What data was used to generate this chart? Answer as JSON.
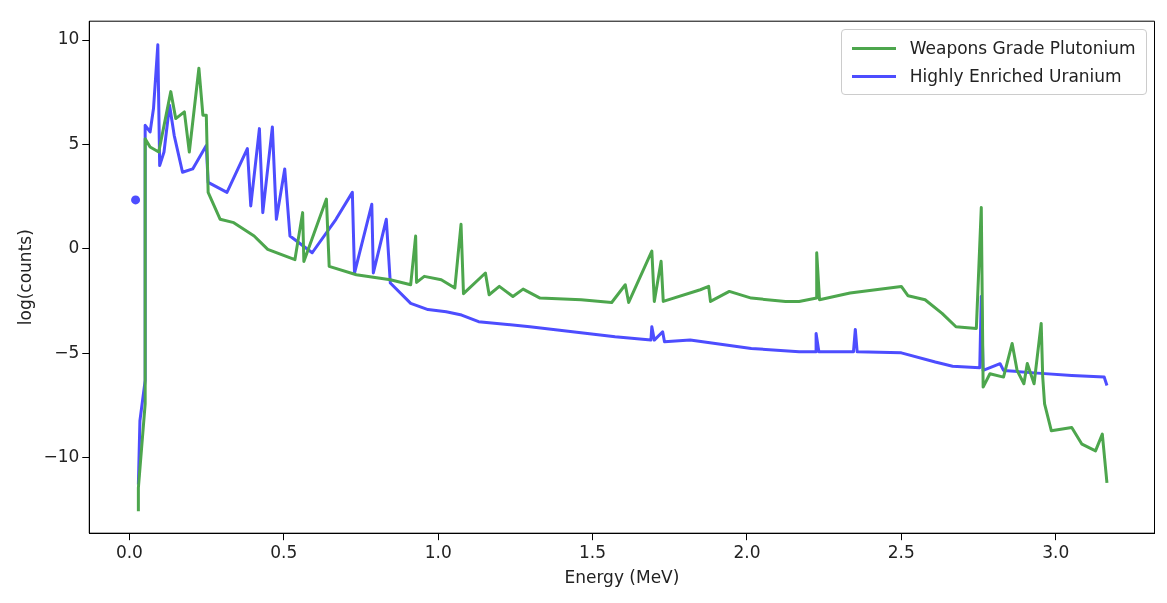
{
  "chart_data": {
    "type": "line",
    "xlabel": "Energy (MeV)",
    "ylabel": "log(counts)",
    "xlim": [
      -0.13,
      3.32
    ],
    "ylim": [
      -13.6,
      10.9
    ],
    "xticks": [
      {
        "value": 0,
        "label": "0.0"
      },
      {
        "value": 0.5,
        "label": "0.5"
      },
      {
        "value": 1,
        "label": "1.0"
      },
      {
        "value": 1.5,
        "label": "1.5"
      },
      {
        "value": 2,
        "label": "2.0"
      },
      {
        "value": 2.5,
        "label": "2.5"
      },
      {
        "value": 3,
        "label": "3.0"
      }
    ],
    "yticks": [
      {
        "value": -10,
        "label": "−10"
      },
      {
        "value": -5,
        "label": "−5"
      },
      {
        "value": 0,
        "label": "0"
      },
      {
        "value": 5,
        "label": "5"
      },
      {
        "value": 10,
        "label": "10"
      }
    ],
    "grid": false,
    "legend": "top right",
    "line_style": "solid",
    "marker": "none",
    "series": [
      {
        "name": "Weapons Grade Plutonium",
        "color": "#4da64d",
        "x": [
          0.029,
          0.029,
          0.051,
          0.051,
          0.067,
          0.095,
          0.134,
          0.15,
          0.178,
          0.194,
          0.225,
          0.238,
          0.249,
          0.255,
          0.294,
          0.338,
          0.404,
          0.448,
          0.536,
          0.561,
          0.565,
          0.638,
          0.647,
          0.735,
          0.845,
          0.911,
          0.927,
          0.93,
          0.955,
          1.01,
          1.054,
          1.074,
          1.082,
          1.153,
          1.165,
          1.198,
          1.242,
          1.275,
          1.33,
          1.463,
          1.562,
          1.606,
          1.617,
          1.692,
          1.7,
          1.722,
          1.729,
          1.849,
          1.876,
          1.882,
          1.943,
          2.014,
          2.125,
          2.169,
          2.226,
          2.226,
          2.235,
          2.334,
          2.5,
          2.522,
          2.577,
          2.632,
          2.677,
          2.743,
          2.759,
          2.765,
          2.787,
          2.831,
          2.859,
          2.875,
          2.897,
          2.908,
          2.93,
          2.953,
          2.958,
          2.964,
          2.986,
          3.052,
          3.085,
          3.129,
          3.151,
          3.166
        ],
        "values": [
          -12.55,
          -11.43,
          -7.41,
          5.28,
          4.88,
          4.64,
          7.53,
          6.24,
          6.56,
          4.64,
          8.65,
          6.4,
          6.4,
          2.71,
          1.42,
          1.26,
          0.62,
          -0.02,
          -0.51,
          1.74,
          -0.6,
          2.39,
          -0.83,
          -1.23,
          -1.47,
          -1.71,
          0.62,
          -1.6,
          -1.31,
          -1.47,
          -1.87,
          1.18,
          -2.14,
          -1.15,
          -2.19,
          -1.79,
          -2.27,
          -1.92,
          -2.35,
          -2.43,
          -2.56,
          -1.71,
          -2.56,
          -0.1,
          -2.51,
          -0.59,
          -2.51,
          -1.95,
          -1.79,
          -2.51,
          -2.03,
          -2.35,
          -2.51,
          -2.51,
          -2.35,
          -0.18,
          -2.43,
          -2.11,
          -1.79,
          -2.24,
          -2.43,
          -3.08,
          -3.72,
          -3.8,
          1.98,
          -6.61,
          -5.97,
          -6.13,
          -4.52,
          -5.81,
          -6.45,
          -5.48,
          -6.45,
          -3.56,
          -6.13,
          -7.41,
          -8.7,
          -8.54,
          -9.34,
          -9.66,
          -8.86,
          -11.19
        ]
      },
      {
        "name": "Highly Enriched Uranium",
        "color": "#4d4dff",
        "x": [
          0.02,
          0.025,
          0.029,
          0.034,
          0.051,
          0.051,
          0.067,
          0.078,
          0.092,
          0.098,
          0.112,
          0.13,
          0.145,
          0.172,
          0.205,
          0.249,
          0.255,
          0.316,
          0.382,
          0.393,
          0.421,
          0.432,
          0.463,
          0.476,
          0.503,
          0.52,
          0.592,
          0.669,
          0.722,
          0.729,
          0.785,
          0.79,
          0.832,
          0.845,
          0.911,
          0.967,
          1.026,
          1.076,
          1.131,
          1.297,
          1.573,
          1.689,
          1.692,
          1.7,
          1.727,
          1.733,
          1.816,
          2.014,
          2.169,
          2.224,
          2.224,
          2.233,
          2.345,
          2.351,
          2.357,
          2.5,
          2.61,
          2.666,
          2.754,
          2.759,
          2.765,
          2.82,
          2.831,
          2.941,
          3.052,
          3.157,
          3.166
        ],
        "values": [
          2.35,
          null,
          -11.27,
          -8.22,
          -6.29,
          5.92,
          5.6,
          6.72,
          9.77,
          3.99,
          4.64,
          6.88,
          5.44,
          3.67,
          3.83,
          4.95,
          3.19,
          2.71,
          4.8,
          2.06,
          5.76,
          1.74,
          5.84,
          1.42,
          3.83,
          0.62,
          -0.18,
          1.42,
          2.71,
          -1.15,
          2.14,
          -1.15,
          1.42,
          -1.63,
          -2.6,
          -2.9,
          -3.0,
          -3.16,
          -3.48,
          -3.72,
          -4.2,
          -4.36,
          -3.72,
          -4.36,
          -3.96,
          -4.44,
          -4.36,
          -4.76,
          -4.92,
          -4.92,
          -4.04,
          -4.92,
          -4.92,
          -3.85,
          -4.92,
          -4.97,
          -5.41,
          -5.61,
          -5.68,
          -2.27,
          -5.81,
          -5.49,
          -5.81,
          -5.94,
          -6.05,
          -6.13,
          -6.53
        ]
      }
    ]
  }
}
